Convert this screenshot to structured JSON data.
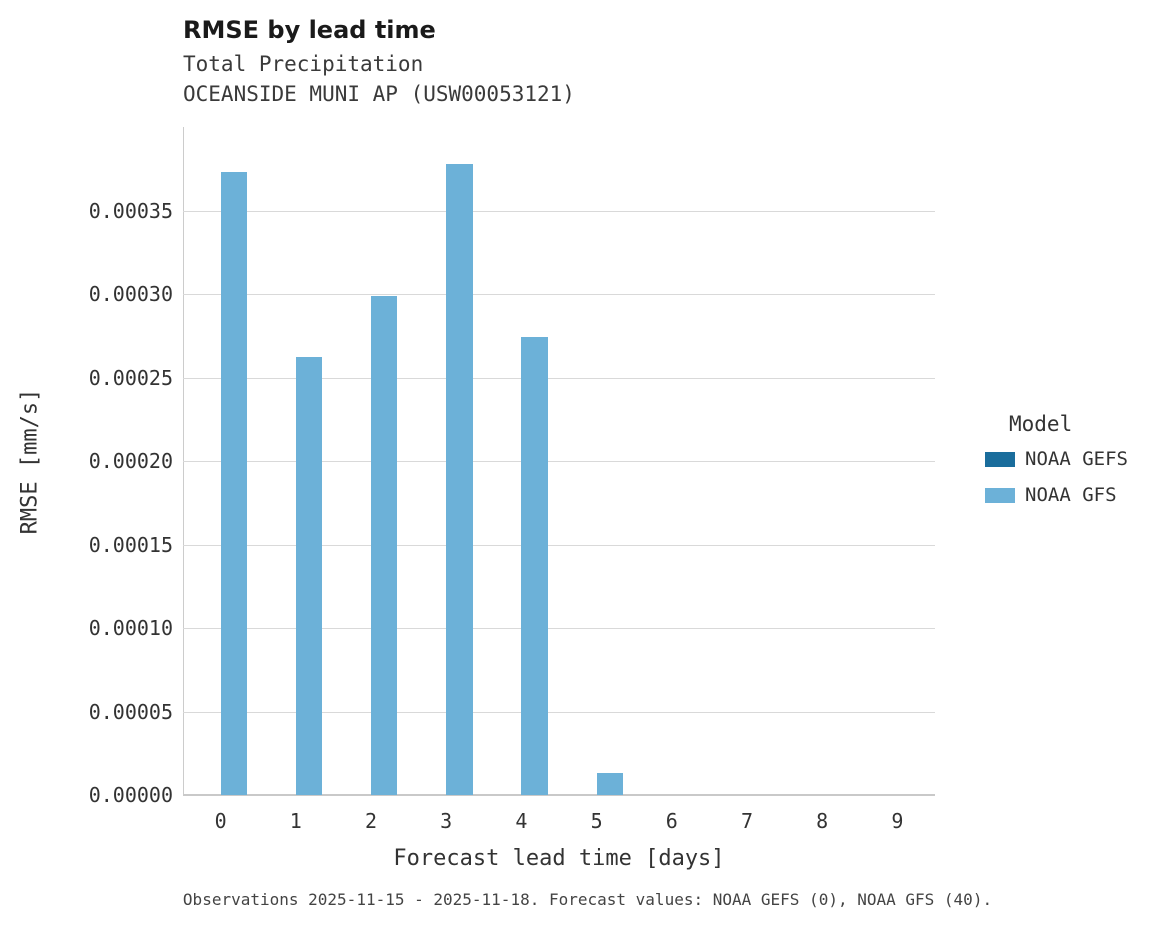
{
  "chart": {
    "title": "RMSE by lead time",
    "subtitle_line1": "Total Precipitation",
    "subtitle_line2": "OCEANSIDE MUNI AP (USW00053121)",
    "ylabel": "RMSE [mm/s]",
    "xlabel": "Forecast lead time [days]",
    "legend_title": "Model",
    "caption": "Observations 2025-11-15 - 2025-11-18. Forecast values: NOAA GEFS (0), NOAA GFS (40)."
  },
  "chart_data": {
    "type": "bar",
    "title": "RMSE by lead time",
    "subtitle": [
      "Total Precipitation",
      "OCEANSIDE MUNI AP (USW00053121)"
    ],
    "xlabel": "Forecast lead time [days]",
    "ylabel": "RMSE [mm/s]",
    "categories": [
      "0",
      "1",
      "2",
      "3",
      "4",
      "5",
      "6",
      "7",
      "8",
      "9"
    ],
    "series": [
      {
        "name": "NOAA GEFS",
        "color": "#1a6d9c",
        "values": [
          null,
          null,
          null,
          null,
          null,
          null,
          null,
          null,
          null,
          null
        ]
      },
      {
        "name": "NOAA GFS",
        "color": "#6cb1d8",
        "values": [
          0.000373,
          0.000262,
          0.000299,
          0.000378,
          0.000274,
          1.3e-05,
          null,
          null,
          null,
          null
        ]
      }
    ],
    "ylim": [
      0,
      0.0004
    ],
    "ytick_step": 5e-05,
    "ytick_max": 0.00035,
    "ytick_decimals": 5,
    "grid": true,
    "legend_position": "right",
    "legend_title": "Model"
  }
}
